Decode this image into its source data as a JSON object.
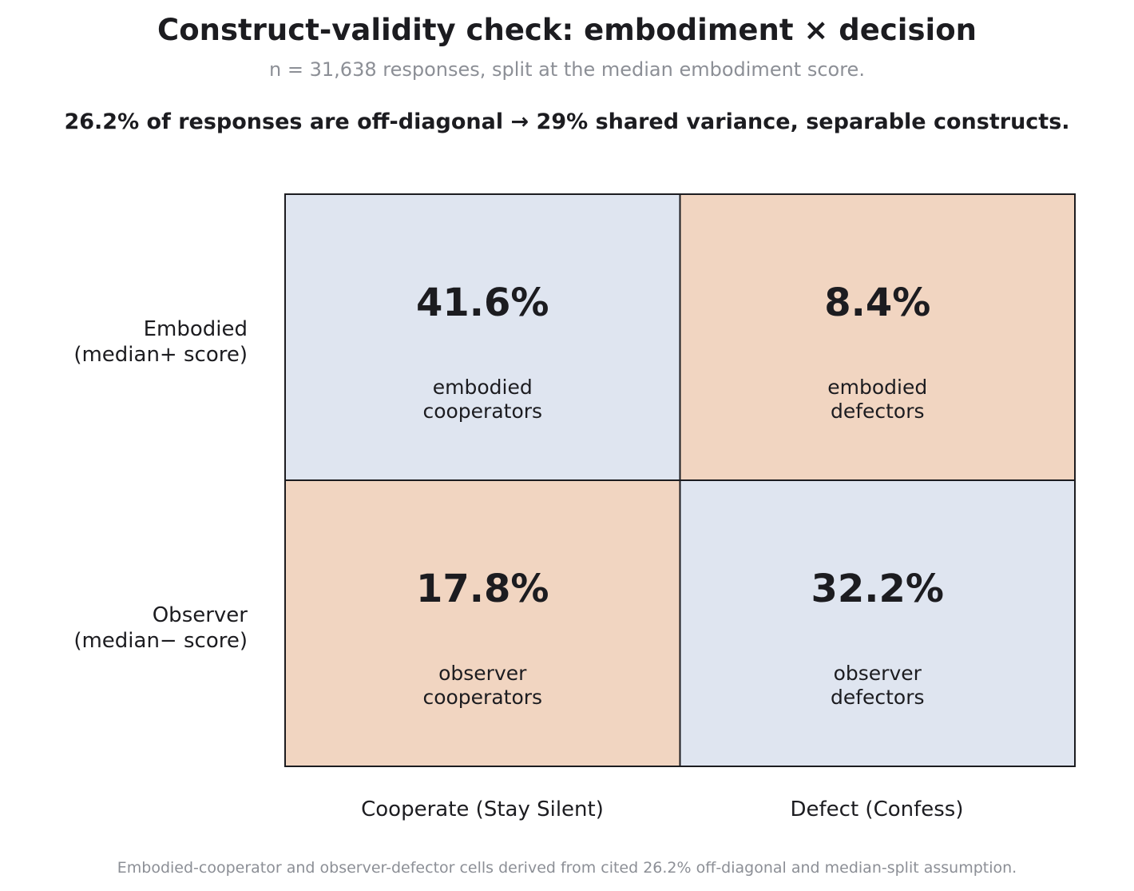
{
  "chart_data": {
    "type": "heatmap",
    "title": "Construct-validity check: embodiment × decision",
    "subtitle": "n = 31,638 responses, split at the median embodiment score.",
    "headline": "26.2% of responses are off-diagonal  →  29% shared variance, separable constructs.",
    "rows": [
      {
        "label_line1": "Embodied",
        "label_line2": "(median+ score)"
      },
      {
        "label_line1": "Observer",
        "label_line2": "(median− score)"
      }
    ],
    "columns": [
      "Cooperate (Stay Silent)",
      "Defect (Confess)"
    ],
    "cells": [
      [
        {
          "value": 41.6,
          "display": "41.6%",
          "label_line1": "embodied",
          "label_line2": "cooperators",
          "color": "#dfe5f0"
        },
        {
          "value": 8.4,
          "display": "8.4%",
          "label_line1": "embodied",
          "label_line2": "defectors",
          "color": "#f1d5c1"
        }
      ],
      [
        {
          "value": 17.8,
          "display": "17.8%",
          "label_line1": "observer",
          "label_line2": "cooperators",
          "color": "#f1d5c1"
        },
        {
          "value": 32.2,
          "display": "32.2%",
          "label_line1": "observer",
          "label_line2": "defectors",
          "color": "#dfe5f0"
        }
      ]
    ],
    "footnote": "Embodied-cooperator and observer-defector cells derived from cited 26.2% off-diagonal and median-split assumption."
  }
}
